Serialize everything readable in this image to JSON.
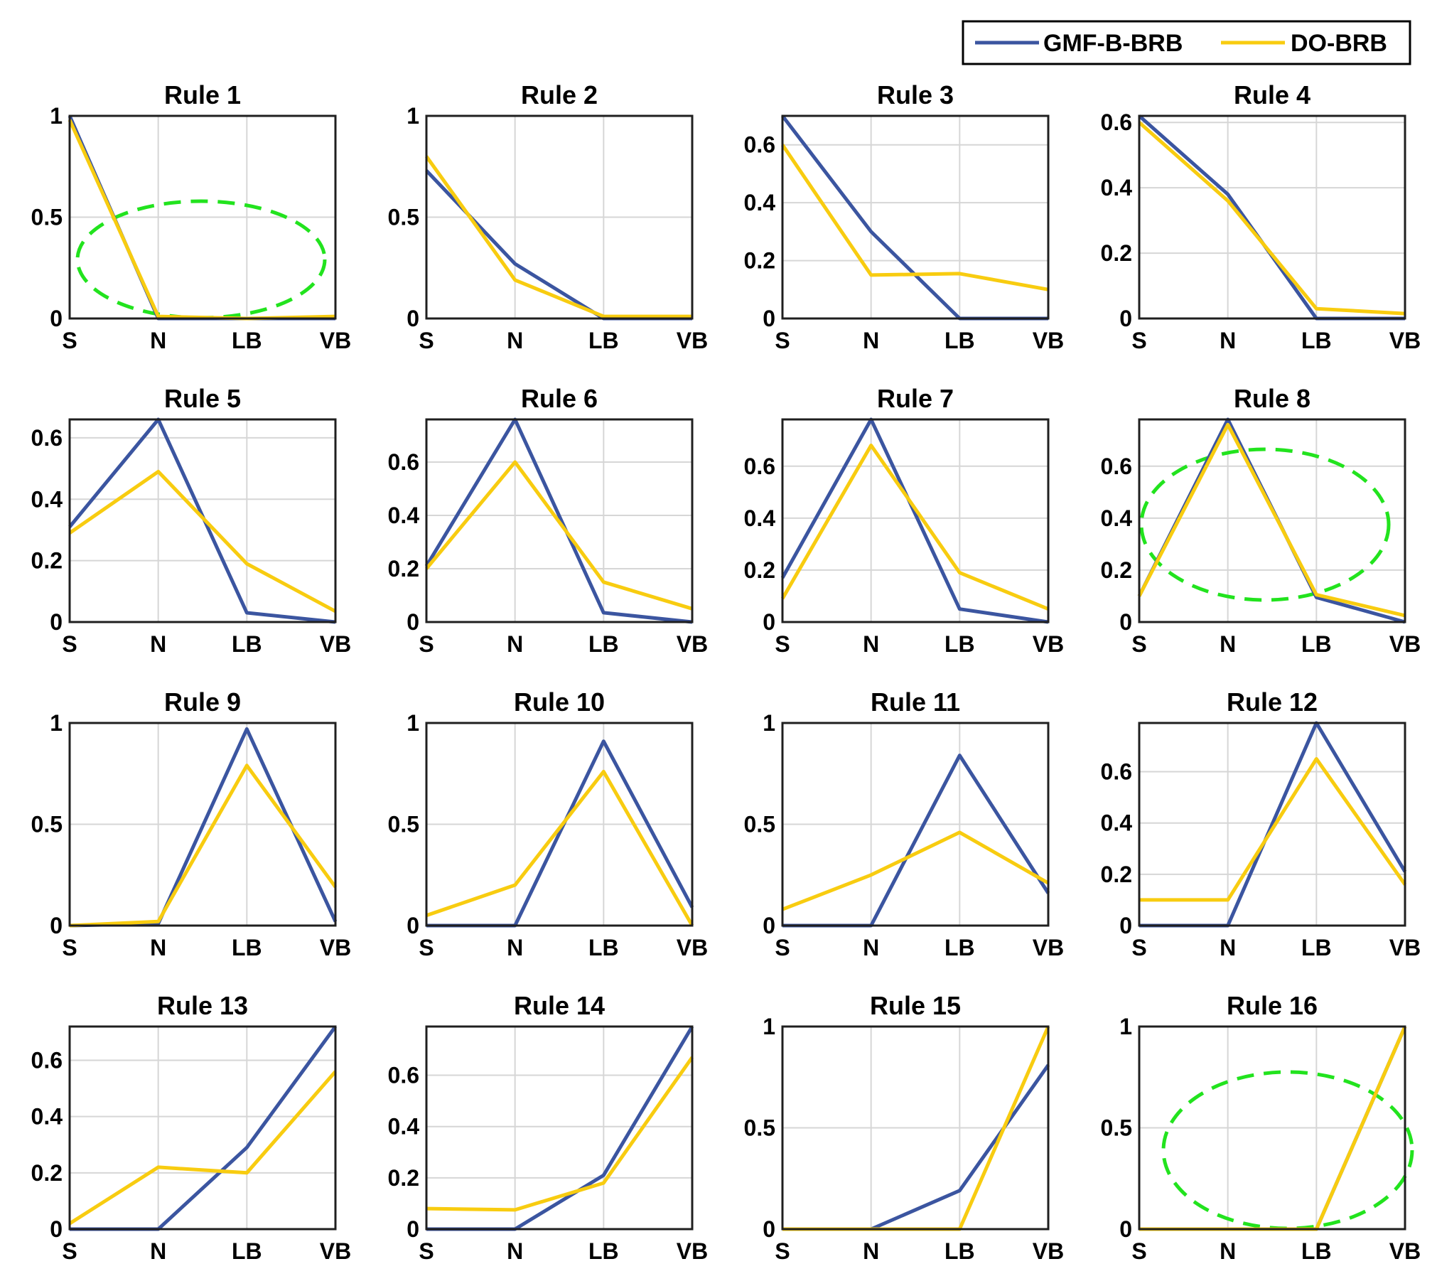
{
  "colors": {
    "gmf": "#3b55a0",
    "do": "#f8cc10",
    "highlight": "#22e31e",
    "grid": "#d6d6d6"
  },
  "legend": {
    "placement": "top-right",
    "entries": [
      "GMF-B-BRB",
      "DO-BRB"
    ]
  },
  "chart_data": [
    {
      "type": "line",
      "title": "Rule 1",
      "categories": [
        "S",
        "N",
        "LB",
        "VB"
      ],
      "ylim": [
        0,
        1
      ],
      "yticks": [
        "0",
        "0.5",
        "1"
      ],
      "yticks_values": [
        0,
        0.5,
        1
      ],
      "highlight": true,
      "series": [
        {
          "name": "GMF-B-BRB",
          "values": [
            1.0,
            0.0,
            0.0,
            0.0
          ]
        },
        {
          "name": "DO-BRB",
          "values": [
            0.98,
            0.01,
            0.0,
            0.01
          ]
        }
      ]
    },
    {
      "type": "line",
      "title": "Rule 2",
      "categories": [
        "S",
        "N",
        "LB",
        "VB"
      ],
      "ylim": [
        0,
        1
      ],
      "yticks": [
        "0",
        "0.5",
        "1"
      ],
      "yticks_values": [
        0,
        0.5,
        1
      ],
      "series": [
        {
          "name": "GMF-B-BRB",
          "values": [
            0.73,
            0.27,
            0.0,
            0.0
          ]
        },
        {
          "name": "DO-BRB",
          "values": [
            0.8,
            0.19,
            0.01,
            0.01
          ]
        }
      ]
    },
    {
      "type": "line",
      "title": "Rule 3",
      "categories": [
        "S",
        "N",
        "LB",
        "VB"
      ],
      "ylim": [
        0,
        0.7
      ],
      "yticks": [
        "0",
        "0.2",
        "0.4",
        "0.6"
      ],
      "yticks_values": [
        0,
        0.2,
        0.4,
        0.6
      ],
      "series": [
        {
          "name": "GMF-B-BRB",
          "values": [
            0.7,
            0.3,
            0.0,
            0.0
          ]
        },
        {
          "name": "DO-BRB",
          "values": [
            0.6,
            0.15,
            0.155,
            0.1
          ]
        }
      ]
    },
    {
      "type": "line",
      "title": "Rule 4",
      "categories": [
        "S",
        "N",
        "LB",
        "VB"
      ],
      "ylim": [
        0,
        0.62
      ],
      "yticks": [
        "0",
        "0.2",
        "0.4",
        "0.6"
      ],
      "yticks_values": [
        0,
        0.2,
        0.4,
        0.6
      ],
      "series": [
        {
          "name": "GMF-B-BRB",
          "values": [
            0.62,
            0.38,
            0.0,
            0.0
          ]
        },
        {
          "name": "DO-BRB",
          "values": [
            0.6,
            0.36,
            0.03,
            0.015
          ]
        }
      ]
    },
    {
      "type": "line",
      "title": "Rule 5",
      "categories": [
        "S",
        "N",
        "LB",
        "VB"
      ],
      "ylim": [
        0,
        0.66
      ],
      "yticks": [
        "0",
        "0.2",
        "0.4",
        "0.6"
      ],
      "yticks_values": [
        0,
        0.2,
        0.4,
        0.6
      ],
      "series": [
        {
          "name": "GMF-B-BRB",
          "values": [
            0.31,
            0.66,
            0.03,
            0.0
          ]
        },
        {
          "name": "DO-BRB",
          "values": [
            0.29,
            0.49,
            0.19,
            0.035
          ]
        }
      ]
    },
    {
      "type": "line",
      "title": "Rule 6",
      "categories": [
        "S",
        "N",
        "LB",
        "VB"
      ],
      "ylim": [
        0,
        0.76
      ],
      "yticks": [
        "0",
        "0.2",
        "0.4",
        "0.6"
      ],
      "yticks_values": [
        0,
        0.2,
        0.4,
        0.6
      ],
      "series": [
        {
          "name": "GMF-B-BRB",
          "values": [
            0.21,
            0.76,
            0.035,
            0.0
          ]
        },
        {
          "name": "DO-BRB",
          "values": [
            0.2,
            0.6,
            0.15,
            0.05
          ]
        }
      ]
    },
    {
      "type": "line",
      "title": "Rule 7",
      "categories": [
        "S",
        "N",
        "LB",
        "VB"
      ],
      "ylim": [
        0,
        0.78
      ],
      "yticks": [
        "0",
        "0.2",
        "0.4",
        "0.6"
      ],
      "yticks_values": [
        0,
        0.2,
        0.4,
        0.6
      ],
      "series": [
        {
          "name": "GMF-B-BRB",
          "values": [
            0.17,
            0.78,
            0.05,
            0.0
          ]
        },
        {
          "name": "DO-BRB",
          "values": [
            0.09,
            0.68,
            0.19,
            0.05
          ]
        }
      ]
    },
    {
      "type": "line",
      "title": "Rule 8",
      "categories": [
        "S",
        "N",
        "LB",
        "VB"
      ],
      "ylim": [
        0,
        0.78
      ],
      "yticks": [
        "0",
        "0.2",
        "0.4",
        "0.6"
      ],
      "yticks_values": [
        0,
        0.2,
        0.4,
        0.6
      ],
      "highlight": true,
      "series": [
        {
          "name": "GMF-B-BRB",
          "values": [
            0.1,
            0.78,
            0.095,
            0.0
          ]
        },
        {
          "name": "DO-BRB",
          "values": [
            0.1,
            0.76,
            0.105,
            0.025
          ]
        }
      ]
    },
    {
      "type": "line",
      "title": "Rule 9",
      "categories": [
        "S",
        "N",
        "LB",
        "VB"
      ],
      "ylim": [
        0,
        1
      ],
      "yticks": [
        "0",
        "0.5",
        "1"
      ],
      "yticks_values": [
        0,
        0.5,
        1
      ],
      "series": [
        {
          "name": "GMF-B-BRB",
          "values": [
            0.0,
            0.01,
            0.97,
            0.02
          ]
        },
        {
          "name": "DO-BRB",
          "values": [
            0.0,
            0.02,
            0.79,
            0.19
          ]
        }
      ]
    },
    {
      "type": "line",
      "title": "Rule 10",
      "categories": [
        "S",
        "N",
        "LB",
        "VB"
      ],
      "ylim": [
        0,
        1
      ],
      "yticks": [
        "0",
        "0.5",
        "1"
      ],
      "yticks_values": [
        0,
        0.5,
        1
      ],
      "series": [
        {
          "name": "GMF-B-BRB",
          "values": [
            0.0,
            0.0,
            0.91,
            0.09
          ]
        },
        {
          "name": "DO-BRB",
          "values": [
            0.05,
            0.2,
            0.76,
            0.0
          ]
        }
      ]
    },
    {
      "type": "line",
      "title": "Rule 11",
      "categories": [
        "S",
        "N",
        "LB",
        "VB"
      ],
      "ylim": [
        0,
        1
      ],
      "yticks": [
        "0",
        "0.5",
        "1"
      ],
      "yticks_values": [
        0,
        0.5,
        1
      ],
      "series": [
        {
          "name": "GMF-B-BRB",
          "values": [
            0.0,
            0.0,
            0.84,
            0.16
          ]
        },
        {
          "name": "DO-BRB",
          "values": [
            0.08,
            0.25,
            0.46,
            0.21
          ]
        }
      ]
    },
    {
      "type": "line",
      "title": "Rule 12",
      "categories": [
        "S",
        "N",
        "LB",
        "VB"
      ],
      "ylim": [
        0,
        0.79
      ],
      "yticks": [
        "0",
        "0.2",
        "0.4",
        "0.6"
      ],
      "yticks_values": [
        0,
        0.2,
        0.4,
        0.6
      ],
      "series": [
        {
          "name": "GMF-B-BRB",
          "values": [
            0.0,
            0.0,
            0.79,
            0.21
          ]
        },
        {
          "name": "DO-BRB",
          "values": [
            0.1,
            0.1,
            0.65,
            0.16
          ]
        }
      ]
    },
    {
      "type": "line",
      "title": "Rule 13",
      "categories": [
        "S",
        "N",
        "LB",
        "VB"
      ],
      "ylim": [
        0,
        0.72
      ],
      "yticks": [
        "0",
        "0.2",
        "0.4",
        "0.6"
      ],
      "yticks_values": [
        0,
        0.2,
        0.4,
        0.6
      ],
      "series": [
        {
          "name": "GMF-B-BRB",
          "values": [
            0.0,
            0.0,
            0.29,
            0.72
          ]
        },
        {
          "name": "DO-BRB",
          "values": [
            0.02,
            0.22,
            0.2,
            0.56
          ]
        }
      ]
    },
    {
      "type": "line",
      "title": "Rule 14",
      "categories": [
        "S",
        "N",
        "LB",
        "VB"
      ],
      "ylim": [
        0,
        0.79
      ],
      "yticks": [
        "0",
        "0.2",
        "0.4",
        "0.6"
      ],
      "yticks_values": [
        0,
        0.2,
        0.4,
        0.6
      ],
      "series": [
        {
          "name": "GMF-B-BRB",
          "values": [
            0.0,
            0.0,
            0.21,
            0.79
          ]
        },
        {
          "name": "DO-BRB",
          "values": [
            0.08,
            0.075,
            0.18,
            0.67
          ]
        }
      ]
    },
    {
      "type": "line",
      "title": "Rule 15",
      "categories": [
        "S",
        "N",
        "LB",
        "VB"
      ],
      "ylim": [
        0,
        1
      ],
      "yticks": [
        "0",
        "0.5",
        "1"
      ],
      "yticks_values": [
        0,
        0.5,
        1
      ],
      "series": [
        {
          "name": "GMF-B-BRB",
          "values": [
            0.0,
            0.0,
            0.19,
            0.81
          ]
        },
        {
          "name": "DO-BRB",
          "values": [
            0.0,
            0.0,
            0.0,
            1.0
          ]
        }
      ]
    },
    {
      "type": "line",
      "title": "Rule 16",
      "categories": [
        "S",
        "N",
        "LB",
        "VB"
      ],
      "ylim": [
        0,
        1
      ],
      "yticks": [
        "0",
        "0.5",
        "1"
      ],
      "yticks_values": [
        0,
        0.5,
        1
      ],
      "highlight": true,
      "series": [
        {
          "name": "GMF-B-BRB",
          "values": [
            0.0,
            0.0,
            0.0,
            1.0
          ]
        },
        {
          "name": "DO-BRB",
          "values": [
            0.0,
            0.0,
            0.0,
            1.0
          ]
        }
      ]
    }
  ]
}
